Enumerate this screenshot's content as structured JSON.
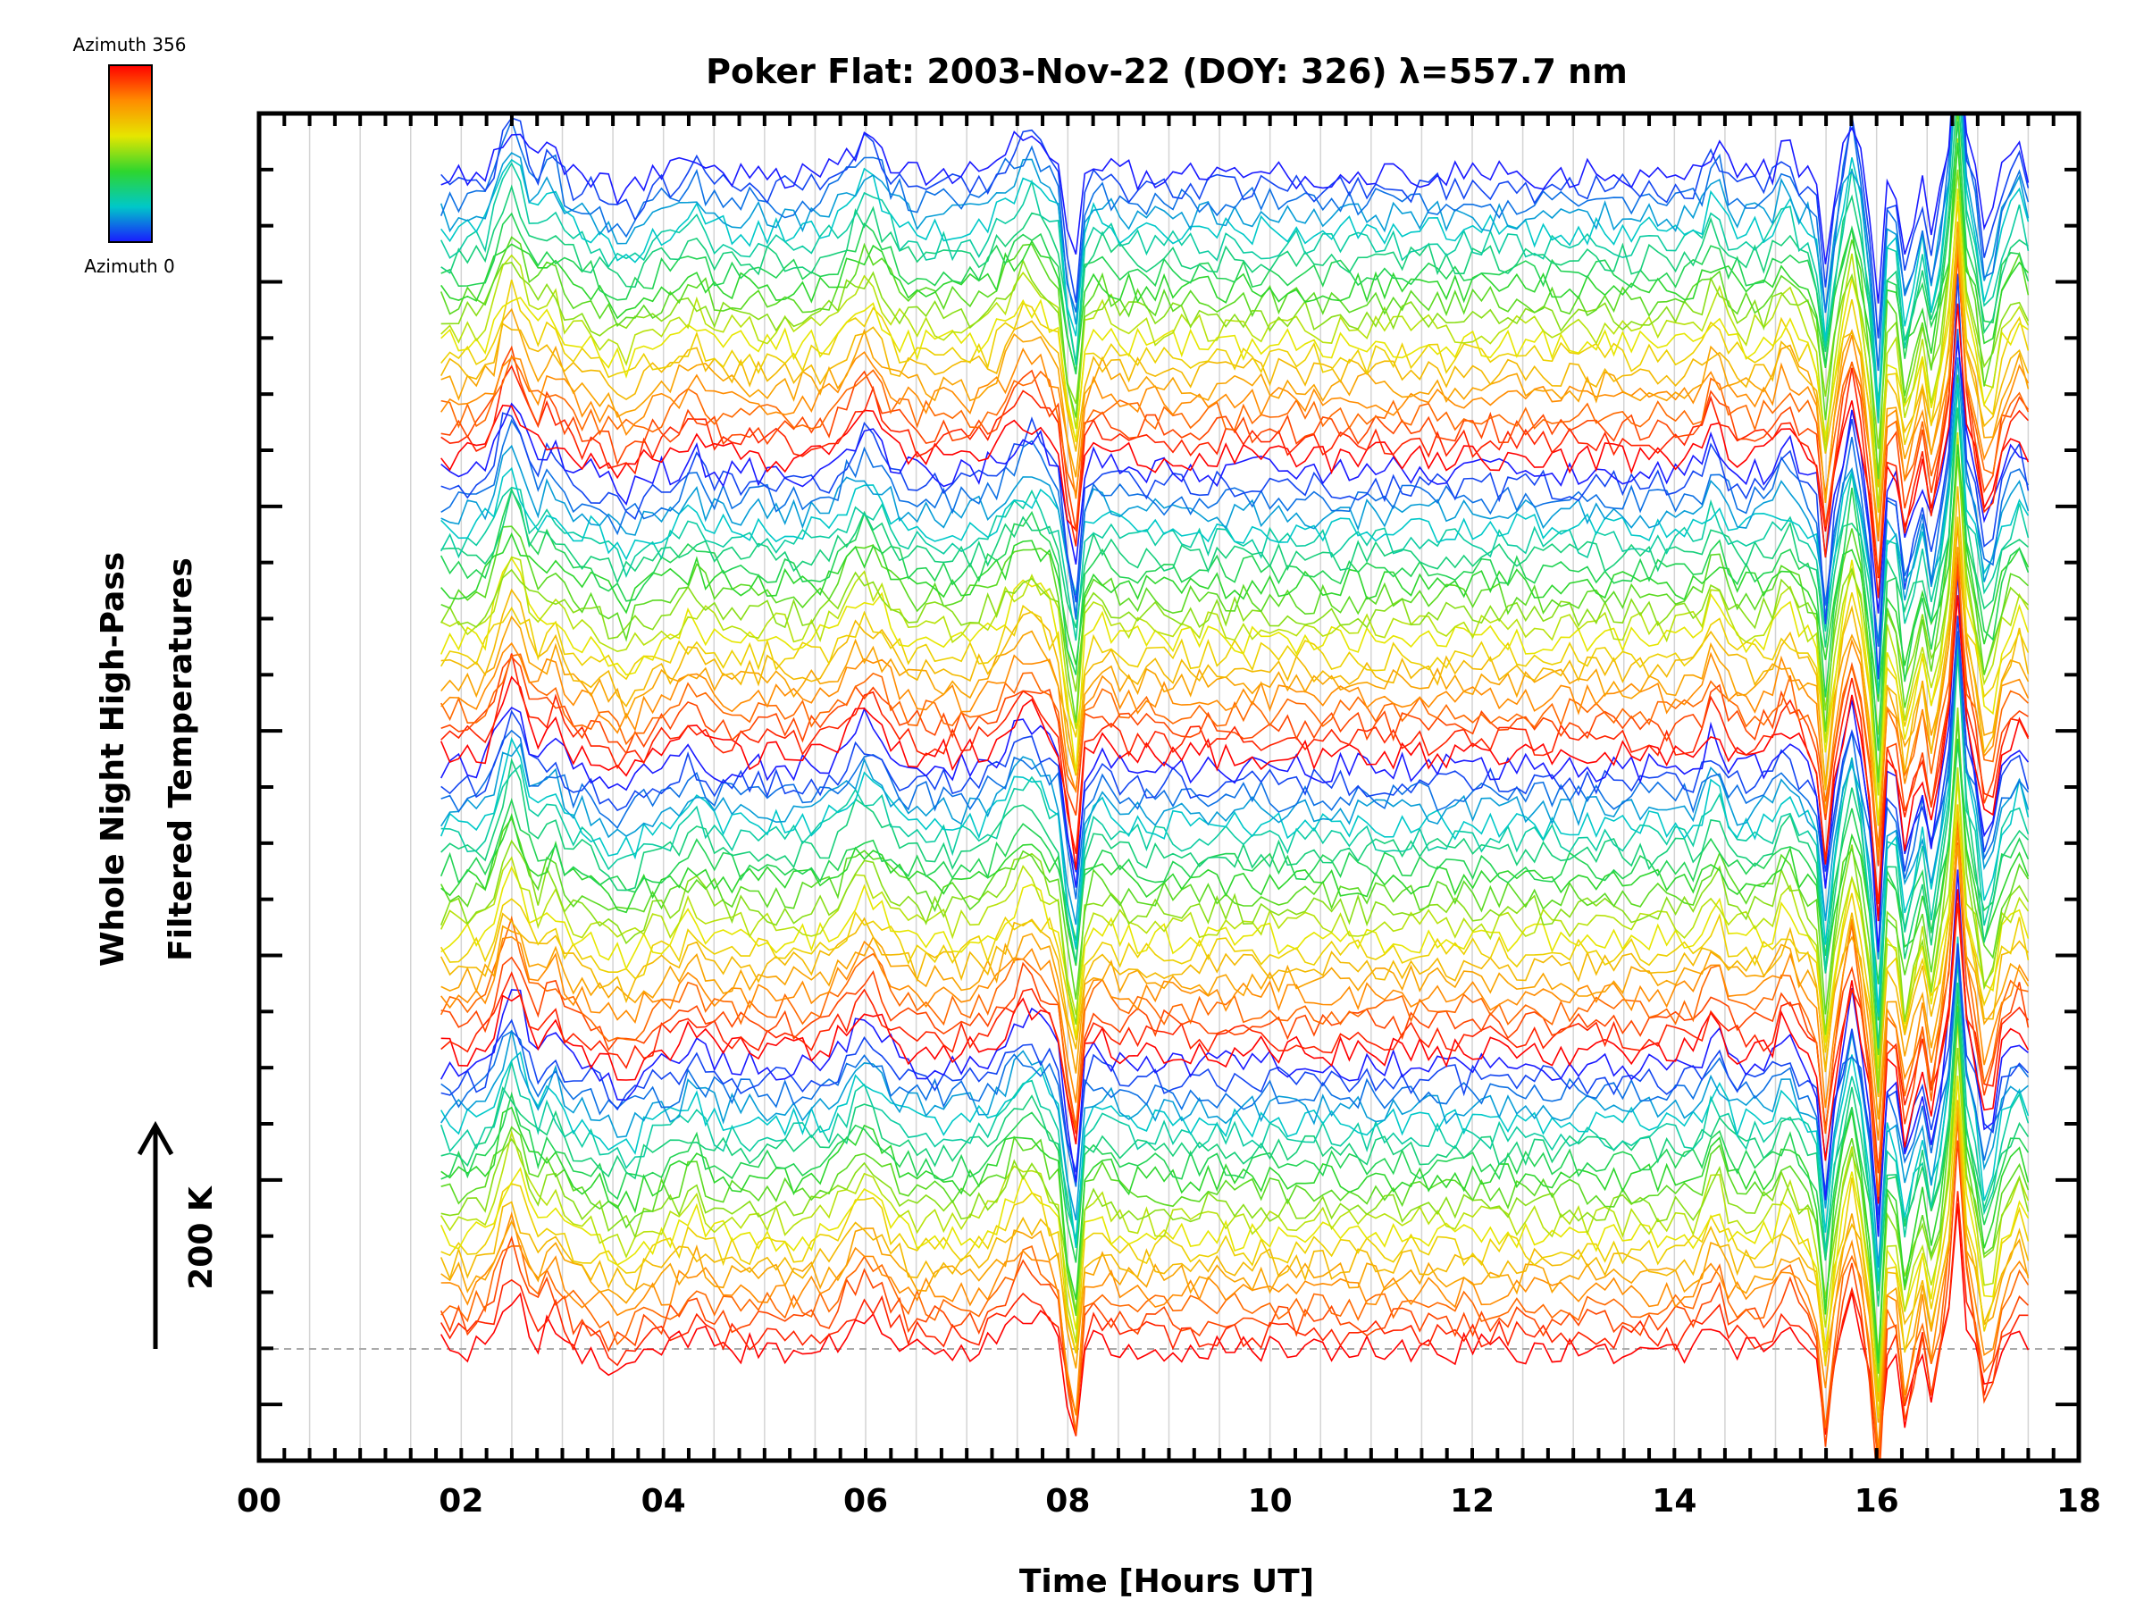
{
  "chart_data": {
    "type": "line",
    "title": "Poker Flat: 2003-Nov-22 (DOY: 326) λ=557.7 nm",
    "xlabel": "Time [Hours UT]",
    "ylabel_line1": "Whole Night High-Pass",
    "ylabel_line2": "Filtered Temperatures",
    "scale_label": "200 K",
    "xlim": [
      0,
      18
    ],
    "x_tick_labels": [
      "00",
      "02",
      "04",
      "06",
      "08",
      "10",
      "12",
      "14",
      "16",
      "18"
    ],
    "x_data_range": [
      1.8,
      17.5
    ],
    "grid": true,
    "colorbar": {
      "top_label": "Azimuth 356",
      "bottom_label": "Azimuth 0",
      "colors": [
        "#ff0000",
        "#ff8c00",
        "#e6e600",
        "#2ed62e",
        "#00c8c8",
        "#1a1aff"
      ]
    },
    "series_count": 84,
    "stacking": "vertically offset traces, azimuth cycling with height"
  }
}
